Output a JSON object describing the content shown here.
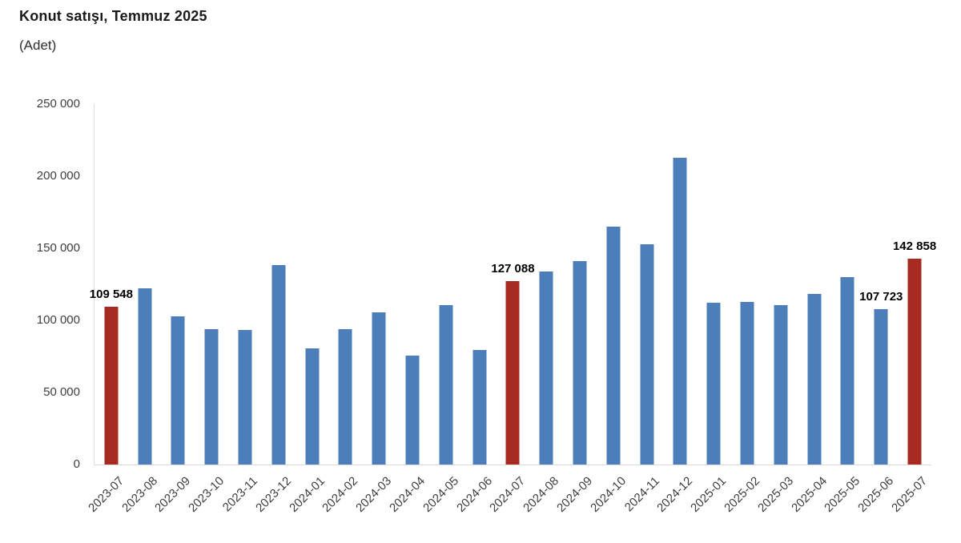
{
  "header": {
    "title": "Konut satışı, Temmuz 2025",
    "subtitle": "(Adet)"
  },
  "chart_data": {
    "type": "bar",
    "title": "Konut satışı, Temmuz 2025",
    "subtitle": "(Adet)",
    "unit": "Adet",
    "xlabel": "",
    "ylabel": "",
    "ylim": [
      0,
      250000
    ],
    "y_tick_values": [
      0,
      50000,
      100000,
      150000,
      200000,
      250000
    ],
    "y_tick_labels": [
      "0",
      "50 000",
      "100 000",
      "150 000",
      "200 000",
      "250 000"
    ],
    "grid": false,
    "legend": "none",
    "colors": {
      "bar_default": "#4c7fba",
      "bar_highlight": "#a82b22",
      "axis_line": "#dcdcdc",
      "tick_text": "#3d3d3d",
      "data_label_text": "#000000"
    },
    "categories": [
      "2023-07",
      "2023-08",
      "2023-09",
      "2023-10",
      "2023-11",
      "2023-12",
      "2024-01",
      "2024-02",
      "2024-03",
      "2024-04",
      "2024-05",
      "2024-06",
      "2024-07",
      "2024-08",
      "2024-09",
      "2024-10",
      "2024-11",
      "2024-12",
      "2025-01",
      "2025-02",
      "2025-03",
      "2025-04",
      "2025-05",
      "2025-06",
      "2025-07"
    ],
    "values": [
      109548,
      122091,
      102656,
      93761,
      93514,
      138577,
      80308,
      93902,
      105476,
      75569,
      110588,
      79313,
      127088,
      134155,
      140919,
      165138,
      153014,
      212637,
      112173,
      112818,
      110795,
      118359,
      130025,
      107723,
      142858
    ],
    "highlight_indices": [
      0,
      12,
      24
    ],
    "labeled_points": [
      {
        "index": 0,
        "text": "109 548"
      },
      {
        "index": 12,
        "text": "127 088"
      },
      {
        "index": 23,
        "text": "107 723"
      },
      {
        "index": 24,
        "text": "142 858"
      }
    ]
  }
}
